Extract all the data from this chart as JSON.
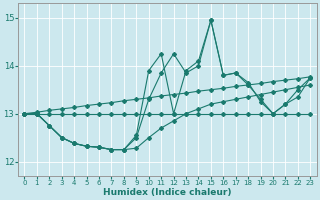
{
  "xlabel": "Humidex (Indice chaleur)",
  "xlim": [
    -0.5,
    23.5
  ],
  "ylim": [
    11.7,
    15.3
  ],
  "yticks": [
    12,
    13,
    14,
    15
  ],
  "xticks": [
    0,
    1,
    2,
    3,
    4,
    5,
    6,
    7,
    8,
    9,
    10,
    11,
    12,
    13,
    14,
    15,
    16,
    17,
    18,
    19,
    20,
    21,
    22,
    23
  ],
  "bg_color": "#cce8ee",
  "line_color": "#1a7a6e",
  "line_flat": {
    "x": [
      0,
      1,
      2,
      3,
      4,
      5,
      6,
      7,
      8,
      9,
      10,
      11,
      12,
      13,
      14,
      15,
      16,
      17,
      18,
      19,
      20,
      21,
      22,
      23
    ],
    "y": [
      13.0,
      13.0,
      13.0,
      13.0,
      13.0,
      13.0,
      13.0,
      13.0,
      13.0,
      13.0,
      13.0,
      13.0,
      13.0,
      13.0,
      13.0,
      13.0,
      13.0,
      13.0,
      13.0,
      13.0,
      13.0,
      13.0,
      13.0,
      13.0
    ]
  },
  "line_rising": {
    "x": [
      0,
      1,
      2,
      3,
      4,
      5,
      6,
      7,
      8,
      9,
      10,
      11,
      12,
      13,
      14,
      15,
      16,
      17,
      18,
      19,
      20,
      21,
      22,
      23
    ],
    "y": [
      13.0,
      13.03,
      13.07,
      13.1,
      13.13,
      13.17,
      13.2,
      13.23,
      13.27,
      13.3,
      13.33,
      13.37,
      13.4,
      13.43,
      13.47,
      13.5,
      13.53,
      13.57,
      13.6,
      13.63,
      13.67,
      13.7,
      13.73,
      13.77
    ]
  },
  "line_bottom": {
    "x": [
      0,
      1,
      2,
      3,
      4,
      5,
      6,
      7,
      8,
      9,
      10,
      11,
      12,
      13,
      14,
      15,
      16,
      17,
      18,
      19,
      20,
      21,
      22,
      23
    ],
    "y": [
      13.0,
      13.0,
      12.75,
      12.5,
      12.38,
      12.32,
      12.3,
      12.25,
      12.25,
      12.28,
      12.5,
      12.7,
      12.85,
      13.0,
      13.1,
      13.2,
      13.25,
      13.3,
      13.35,
      13.4,
      13.45,
      13.5,
      13.55,
      13.6
    ]
  },
  "line_top": {
    "x": [
      0,
      1,
      2,
      3,
      4,
      5,
      6,
      7,
      8,
      9,
      10,
      11,
      12,
      13,
      14,
      15,
      16,
      17,
      18,
      19,
      20,
      21,
      22,
      23
    ],
    "y": [
      13.0,
      13.0,
      12.75,
      12.5,
      12.38,
      12.32,
      12.3,
      12.25,
      12.25,
      12.5,
      13.3,
      13.85,
      14.25,
      13.85,
      14.0,
      14.95,
      13.8,
      13.85,
      13.65,
      13.25,
      13.0,
      13.2,
      13.5,
      13.75
    ]
  },
  "line_zigzag": {
    "x": [
      0,
      1,
      2,
      3,
      4,
      5,
      6,
      7,
      8,
      9,
      10,
      11,
      12,
      13,
      14,
      15,
      16,
      17,
      18,
      19,
      20,
      21,
      22,
      23
    ],
    "y": [
      13.0,
      13.0,
      12.75,
      12.5,
      12.38,
      12.32,
      12.3,
      12.25,
      12.25,
      12.55,
      13.9,
      14.25,
      13.0,
      13.9,
      14.1,
      14.95,
      13.8,
      13.85,
      13.6,
      13.3,
      13.0,
      13.2,
      13.35,
      13.75
    ]
  }
}
